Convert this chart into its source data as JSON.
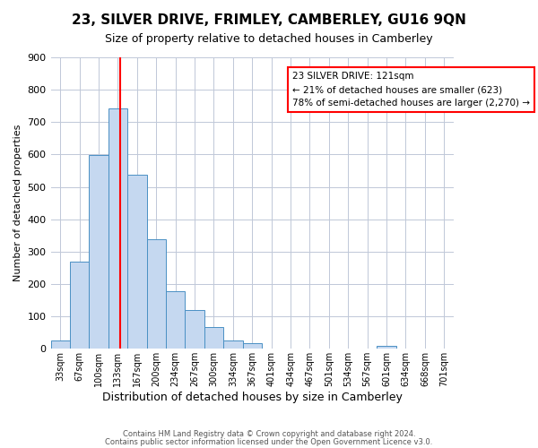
{
  "title": "23, SILVER DRIVE, FRIMLEY, CAMBERLEY, GU16 9QN",
  "subtitle": "Size of property relative to detached houses in Camberley",
  "xlabel": "Distribution of detached houses by size in Camberley",
  "ylabel": "Number of detached properties",
  "bin_labels": [
    "33sqm",
    "67sqm",
    "100sqm",
    "133sqm",
    "167sqm",
    "200sqm",
    "234sqm",
    "267sqm",
    "300sqm",
    "334sqm",
    "367sqm",
    "401sqm",
    "434sqm",
    "467sqm",
    "501sqm",
    "534sqm",
    "567sqm",
    "601sqm",
    "634sqm",
    "668sqm",
    "701sqm"
  ],
  "bar_heights": [
    25,
    270,
    598,
    742,
    537,
    337,
    178,
    120,
    66,
    25,
    18,
    0,
    0,
    0,
    0,
    0,
    0,
    8,
    0,
    0,
    0
  ],
  "bar_color": "#c5d8f0",
  "bar_edge_color": "#4a90c4",
  "bar_width": 1.0,
  "vline_x": 3.636,
  "vline_color": "red",
  "ylim": [
    0,
    900
  ],
  "yticks": [
    0,
    100,
    200,
    300,
    400,
    500,
    600,
    700,
    800,
    900
  ],
  "annotation_title": "23 SILVER DRIVE: 121sqm",
  "annotation_line1": "← 21% of detached houses are smaller (623)",
  "annotation_line2": "78% of semi-detached houses are larger (2,270) →",
  "annotation_box_color": "red",
  "footer_line1": "Contains HM Land Registry data © Crown copyright and database right 2024.",
  "footer_line2": "Contains public sector information licensed under the Open Government Licence v3.0.",
  "background_color": "#ffffff",
  "grid_color": "#c0c8d8"
}
